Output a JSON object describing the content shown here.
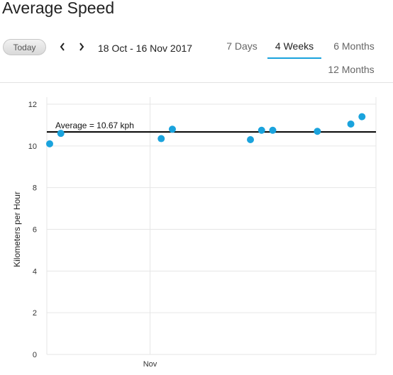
{
  "header": {
    "title": "Average Speed"
  },
  "toolbar": {
    "today_label": "Today",
    "date_range": "18 Oct - 16 Nov 2017"
  },
  "tabs": [
    {
      "label": "7 Days",
      "active": false
    },
    {
      "label": "4 Weeks",
      "active": true
    },
    {
      "label": "6 Months",
      "active": false
    },
    {
      "label": "12 Months",
      "active": false
    }
  ],
  "colors": {
    "accent": "#1aa3dd",
    "point": "#1aa3dd",
    "grid": "#e6e6e6",
    "average_line": "#000000"
  },
  "chart_data": {
    "type": "scatter",
    "ylabel": "Kilometers per Hour",
    "ylim": [
      0,
      12
    ],
    "yticks": [
      0,
      2,
      4,
      6,
      8,
      10,
      12
    ],
    "x_domain": [
      "2017-10-18",
      "2017-11-16"
    ],
    "xticks": [
      {
        "date": "2017-10-27",
        "label": "Nov"
      }
    ],
    "grid": true,
    "average": {
      "value": 10.67,
      "label": "Average = 10.67 kph"
    },
    "points": [
      {
        "date": "2017-10-18",
        "value": 10.1
      },
      {
        "date": "2017-10-19",
        "value": 10.6
      },
      {
        "date": "2017-10-28",
        "value": 10.35
      },
      {
        "date": "2017-10-29",
        "value": 10.8
      },
      {
        "date": "2017-11-05",
        "value": 10.3
      },
      {
        "date": "2017-11-06",
        "value": 10.75
      },
      {
        "date": "2017-11-07",
        "value": 10.75
      },
      {
        "date": "2017-11-11",
        "value": 10.7
      },
      {
        "date": "2017-11-14",
        "value": 11.05
      },
      {
        "date": "2017-11-15",
        "value": 11.4
      }
    ]
  }
}
